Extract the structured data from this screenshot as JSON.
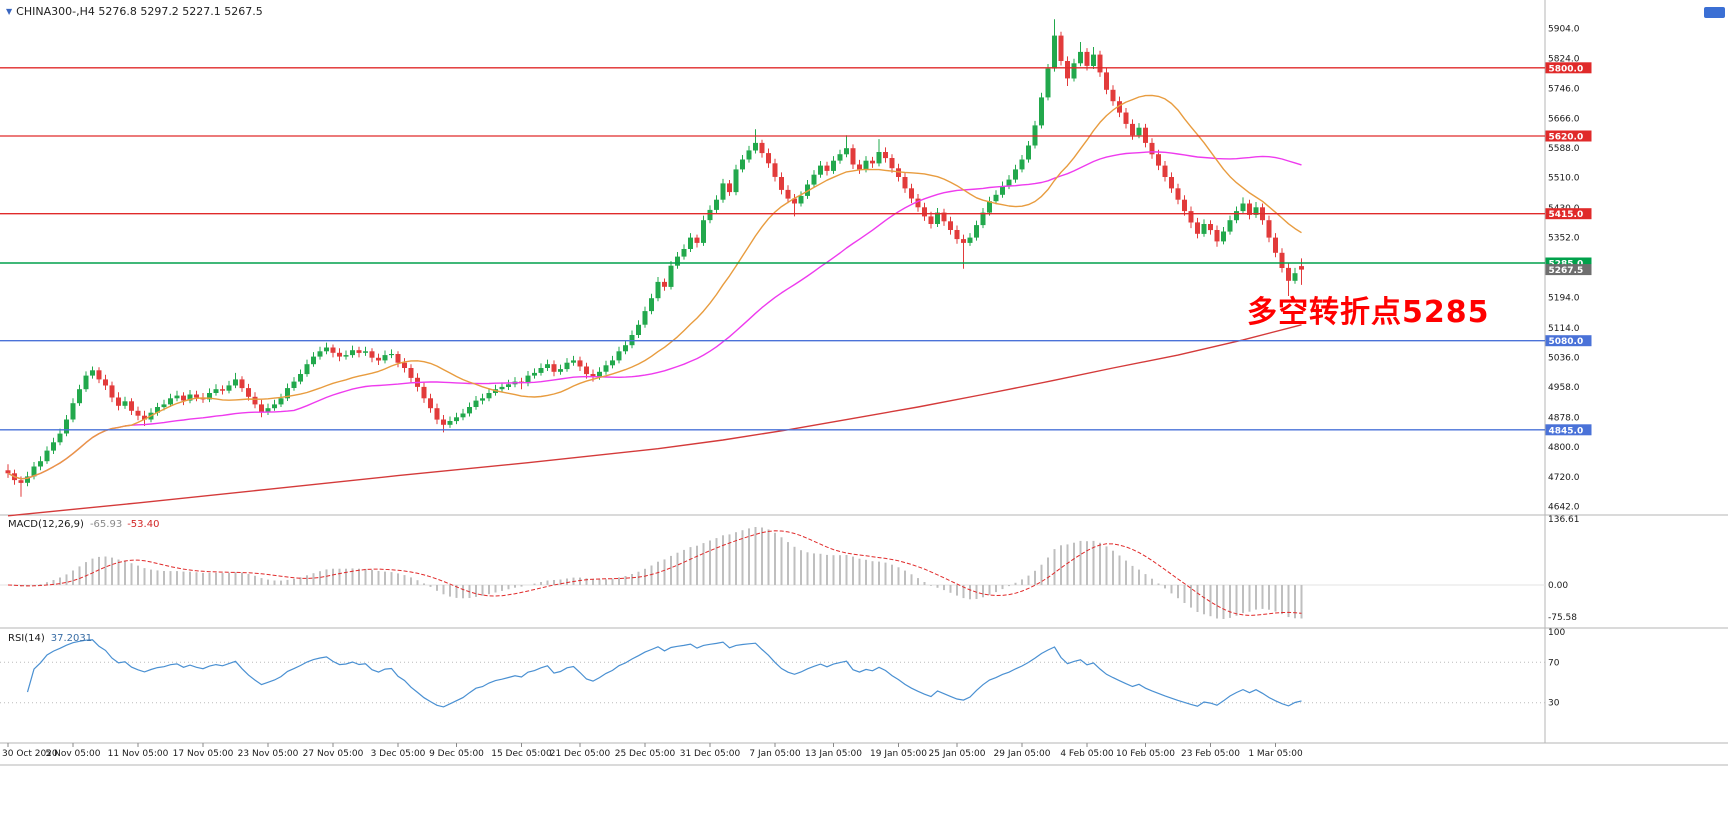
{
  "header": {
    "title": "CHINA300-,H4 5276.8 5297.2 5227.1 5267.5",
    "symbol": "CHINA300-",
    "timeframe": "H4",
    "open": "5276.8",
    "high": "5297.2",
    "low": "5227.1",
    "close": "5267.5"
  },
  "colors": {
    "up": "#22a84c",
    "down": "#e23b3b",
    "red_line": "#e02a2a",
    "green_line": "#00a14b",
    "blue_line": "#4a72d8",
    "current_tag": "#6e6e6e",
    "ma_fast": "#e89c3f",
    "ma_mid": "#ee3bee",
    "ma_slow": "#d43a3a",
    "macd_hist": "#bfbfbf",
    "macd_signal": "#e02a2a",
    "rsi": "#4a90d2",
    "annotation": "#ff0000"
  },
  "chart_data": {
    "type": "candlestick",
    "title": "CHINA300- H4",
    "price_axis": {
      "ticks": [
        5904,
        5824,
        5746,
        5666,
        5588,
        5510,
        5430,
        5352,
        5272,
        5194,
        5114,
        5036,
        4958,
        4878,
        4800,
        4720,
        4642
      ],
      "decimals": 1
    },
    "time_axis": [
      {
        "label": "30 Oct 2020",
        "i": 0
      },
      {
        "label": "5 Nov 05:00",
        "i": 10
      },
      {
        "label": "11 Nov 05:00",
        "i": 20
      },
      {
        "label": "17 Nov 05:00",
        "i": 30
      },
      {
        "label": "23 Nov 05:00",
        "i": 40
      },
      {
        "label": "27 Nov 05:00",
        "i": 50
      },
      {
        "label": "3 Dec 05:00",
        "i": 60
      },
      {
        "label": "9 Dec 05:00",
        "i": 69
      },
      {
        "label": "15 Dec 05:00",
        "i": 79
      },
      {
        "label": "21 Dec 05:00",
        "i": 88
      },
      {
        "label": "25 Dec 05:00",
        "i": 98
      },
      {
        "label": "31 Dec 05:00",
        "i": 108
      },
      {
        "label": "7 Jan 05:00",
        "i": 118
      },
      {
        "label": "13 Jan 05:00",
        "i": 127
      },
      {
        "label": "19 Jan 05:00",
        "i": 137
      },
      {
        "label": "25 Jan 05:00",
        "i": 146
      },
      {
        "label": "29 Jan 05:00",
        "i": 156
      },
      {
        "label": "4 Feb 05:00",
        "i": 166
      },
      {
        "label": "10 Feb 05:00",
        "i": 175
      },
      {
        "label": "23 Feb 05:00",
        "i": 185
      },
      {
        "label": "1 Mar 05:00",
        "i": 195
      }
    ],
    "ohlc": [
      [
        4738,
        4754,
        4718,
        4730
      ],
      [
        4730,
        4740,
        4700,
        4712
      ],
      [
        4712,
        4722,
        4668,
        4705
      ],
      [
        4705,
        4734,
        4696,
        4722
      ],
      [
        4722,
        4760,
        4714,
        4748
      ],
      [
        4748,
        4775,
        4738,
        4762
      ],
      [
        4762,
        4801,
        4755,
        4790
      ],
      [
        4790,
        4824,
        4781,
        4812
      ],
      [
        4812,
        4848,
        4804,
        4835
      ],
      [
        4835,
        4884,
        4828,
        4872
      ],
      [
        4872,
        4928,
        4865,
        4915
      ],
      [
        4915,
        4964,
        4908,
        4952
      ],
      [
        4952,
        4999,
        4945,
        4988
      ],
      [
        4988,
        5012,
        4980,
        5002
      ],
      [
        5002,
        5010,
        4968,
        4978
      ],
      [
        4978,
        4990,
        4950,
        4962
      ],
      [
        4962,
        4972,
        4918,
        4930
      ],
      [
        4930,
        4944,
        4896,
        4908
      ],
      [
        4908,
        4932,
        4900,
        4920
      ],
      [
        4920,
        4928,
        4884,
        4895
      ],
      [
        4895,
        4906,
        4870,
        4882
      ],
      [
        4882,
        4895,
        4855,
        4872
      ],
      [
        4872,
        4902,
        4865,
        4890
      ],
      [
        4890,
        4916,
        4882,
        4905
      ],
      [
        4905,
        4924,
        4896,
        4912
      ],
      [
        4912,
        4940,
        4905,
        4928
      ],
      [
        4928,
        4948,
        4920,
        4935
      ],
      [
        4935,
        4944,
        4910,
        4922
      ],
      [
        4922,
        4950,
        4915,
        4938
      ],
      [
        4938,
        4948,
        4920,
        4930
      ],
      [
        4930,
        4942,
        4916,
        4925
      ],
      [
        4925,
        4954,
        4918,
        4942
      ],
      [
        4942,
        4965,
        4935,
        4952
      ],
      [
        4952,
        4962,
        4938,
        4948
      ],
      [
        4948,
        4974,
        4941,
        4962
      ],
      [
        4962,
        4995,
        4955,
        4978
      ],
      [
        4978,
        4986,
        4945,
        4955
      ],
      [
        4955,
        4966,
        4922,
        4932
      ],
      [
        4932,
        4944,
        4902,
        4912
      ],
      [
        4912,
        4924,
        4878,
        4892
      ],
      [
        4892,
        4914,
        4884,
        4902
      ],
      [
        4902,
        4924,
        4895,
        4912
      ],
      [
        4912,
        4940,
        4905,
        4928
      ],
      [
        4928,
        4967,
        4921,
        4955
      ],
      [
        4955,
        4984,
        4948,
        4972
      ],
      [
        4972,
        5004,
        4965,
        4992
      ],
      [
        4992,
        5030,
        4985,
        5018
      ],
      [
        5018,
        5050,
        5011,
        5038
      ],
      [
        5038,
        5064,
        5030,
        5052
      ],
      [
        5052,
        5075,
        5044,
        5062
      ],
      [
        5062,
        5070,
        5036,
        5048
      ],
      [
        5048,
        5060,
        5026,
        5038
      ],
      [
        5038,
        5054,
        5030,
        5042
      ],
      [
        5042,
        5067,
        5035,
        5055
      ],
      [
        5055,
        5064,
        5036,
        5048
      ],
      [
        5048,
        5064,
        5040,
        5052
      ],
      [
        5052,
        5060,
        5023,
        5035
      ],
      [
        5035,
        5046,
        5016,
        5028
      ],
      [
        5028,
        5054,
        5020,
        5042
      ],
      [
        5042,
        5057,
        5034,
        5045
      ],
      [
        5045,
        5052,
        5010,
        5022
      ],
      [
        5022,
        5034,
        4996,
        5008
      ],
      [
        5008,
        5018,
        4970,
        4982
      ],
      [
        4982,
        4994,
        4946,
        4958
      ],
      [
        4958,
        4970,
        4916,
        4928
      ],
      [
        4928,
        4940,
        4890,
        4902
      ],
      [
        4902,
        4914,
        4860,
        4872
      ],
      [
        4872,
        4884,
        4838,
        4858
      ],
      [
        4858,
        4880,
        4850,
        4868
      ],
      [
        4868,
        4890,
        4860,
        4878
      ],
      [
        4878,
        4900,
        4870,
        4888
      ],
      [
        4888,
        4917,
        4880,
        4905
      ],
      [
        4905,
        4934,
        4898,
        4922
      ],
      [
        4922,
        4940,
        4912,
        4928
      ],
      [
        4928,
        4954,
        4920,
        4942
      ],
      [
        4942,
        4964,
        4935,
        4952
      ],
      [
        4952,
        4970,
        4944,
        4958
      ],
      [
        4958,
        4977,
        4950,
        4965
      ],
      [
        4965,
        4984,
        4957,
        4972
      ],
      [
        4972,
        4982,
        4952,
        4968
      ],
      [
        4968,
        5000,
        4960,
        4988
      ],
      [
        4988,
        5007,
        4980,
        4995
      ],
      [
        4995,
        5020,
        4988,
        5008
      ],
      [
        5008,
        5030,
        5000,
        5018
      ],
      [
        5018,
        5028,
        4986,
        4998
      ],
      [
        4998,
        5017,
        4990,
        5005
      ],
      [
        5005,
        5034,
        4998,
        5022
      ],
      [
        5022,
        5040,
        5014,
        5028
      ],
      [
        5028,
        5038,
        5000,
        5012
      ],
      [
        5012,
        5022,
        4980,
        4992
      ],
      [
        4992,
        5004,
        4972,
        4985
      ],
      [
        4985,
        5010,
        4977,
        4998
      ],
      [
        4998,
        5027,
        4990,
        5015
      ],
      [
        5015,
        5040,
        5007,
        5028
      ],
      [
        5028,
        5064,
        5020,
        5052
      ],
      [
        5052,
        5080,
        5044,
        5068
      ],
      [
        5068,
        5107,
        5060,
        5095
      ],
      [
        5095,
        5134,
        5087,
        5122
      ],
      [
        5122,
        5170,
        5114,
        5158
      ],
      [
        5158,
        5204,
        5150,
        5192
      ],
      [
        5192,
        5248,
        5184,
        5235
      ],
      [
        5235,
        5244,
        5212,
        5222
      ],
      [
        5222,
        5290,
        5215,
        5278
      ],
      [
        5278,
        5314,
        5270,
        5302
      ],
      [
        5302,
        5334,
        5294,
        5322
      ],
      [
        5322,
        5364,
        5314,
        5352
      ],
      [
        5352,
        5360,
        5326,
        5338
      ],
      [
        5338,
        5410,
        5330,
        5398
      ],
      [
        5398,
        5437,
        5390,
        5425
      ],
      [
        5425,
        5464,
        5417,
        5452
      ],
      [
        5452,
        5507,
        5444,
        5495
      ],
      [
        5495,
        5504,
        5462,
        5472
      ],
      [
        5472,
        5544,
        5464,
        5532
      ],
      [
        5532,
        5570,
        5524,
        5558
      ],
      [
        5558,
        5594,
        5550,
        5582
      ],
      [
        5582,
        5638,
        5574,
        5602
      ],
      [
        5602,
        5610,
        5563,
        5575
      ],
      [
        5575,
        5587,
        5536,
        5548
      ],
      [
        5548,
        5560,
        5500,
        5512
      ],
      [
        5512,
        5524,
        5466,
        5478
      ],
      [
        5478,
        5490,
        5443,
        5455
      ],
      [
        5455,
        5467,
        5408,
        5442
      ],
      [
        5442,
        5474,
        5434,
        5462
      ],
      [
        5462,
        5504,
        5454,
        5492
      ],
      [
        5492,
        5530,
        5484,
        5518
      ],
      [
        5518,
        5554,
        5510,
        5542
      ],
      [
        5542,
        5552,
        5516,
        5528
      ],
      [
        5528,
        5567,
        5520,
        5555
      ],
      [
        5555,
        5584,
        5547,
        5572
      ],
      [
        5572,
        5622,
        5564,
        5588
      ],
      [
        5588,
        5598,
        5533,
        5545
      ],
      [
        5545,
        5557,
        5520,
        5532
      ],
      [
        5532,
        5567,
        5524,
        5555
      ],
      [
        5555,
        5565,
        5536,
        5548
      ],
      [
        5548,
        5612,
        5540,
        5578
      ],
      [
        5578,
        5590,
        5550,
        5562
      ],
      [
        5562,
        5572,
        5523,
        5535
      ],
      [
        5535,
        5547,
        5500,
        5512
      ],
      [
        5512,
        5524,
        5470,
        5482
      ],
      [
        5482,
        5494,
        5443,
        5455
      ],
      [
        5455,
        5467,
        5420,
        5432
      ],
      [
        5432,
        5444,
        5396,
        5408
      ],
      [
        5408,
        5420,
        5376,
        5388
      ],
      [
        5388,
        5430,
        5380,
        5418
      ],
      [
        5418,
        5428,
        5383,
        5395
      ],
      [
        5395,
        5407,
        5360,
        5372
      ],
      [
        5372,
        5384,
        5336,
        5348
      ],
      [
        5348,
        5360,
        5270,
        5338
      ],
      [
        5338,
        5364,
        5330,
        5352
      ],
      [
        5352,
        5397,
        5344,
        5385
      ],
      [
        5385,
        5430,
        5377,
        5418
      ],
      [
        5418,
        5460,
        5410,
        5448
      ],
      [
        5448,
        5477,
        5440,
        5465
      ],
      [
        5465,
        5500,
        5457,
        5488
      ],
      [
        5488,
        5517,
        5480,
        5505
      ],
      [
        5505,
        5544,
        5497,
        5532
      ],
      [
        5532,
        5570,
        5524,
        5558
      ],
      [
        5558,
        5607,
        5550,
        5595
      ],
      [
        5595,
        5660,
        5587,
        5648
      ],
      [
        5648,
        5734,
        5640,
        5722
      ],
      [
        5722,
        5810,
        5714,
        5798
      ],
      [
        5798,
        5928,
        5790,
        5885
      ],
      [
        5885,
        5895,
        5806,
        5818
      ],
      [
        5818,
        5830,
        5752,
        5772
      ],
      [
        5772,
        5824,
        5764,
        5812
      ],
      [
        5812,
        5868,
        5804,
        5842
      ],
      [
        5842,
        5852,
        5793,
        5805
      ],
      [
        5805,
        5855,
        5797,
        5835
      ],
      [
        5835,
        5845,
        5776,
        5788
      ],
      [
        5788,
        5800,
        5730,
        5742
      ],
      [
        5742,
        5754,
        5700,
        5712
      ],
      [
        5712,
        5724,
        5670,
        5682
      ],
      [
        5682,
        5694,
        5640,
        5652
      ],
      [
        5652,
        5664,
        5610,
        5622
      ],
      [
        5622,
        5654,
        5614,
        5642
      ],
      [
        5642,
        5652,
        5590,
        5602
      ],
      [
        5602,
        5614,
        5560,
        5572
      ],
      [
        5572,
        5584,
        5530,
        5542
      ],
      [
        5542,
        5554,
        5500,
        5512
      ],
      [
        5512,
        5524,
        5470,
        5482
      ],
      [
        5482,
        5494,
        5440,
        5452
      ],
      [
        5452,
        5464,
        5410,
        5422
      ],
      [
        5422,
        5434,
        5377,
        5392
      ],
      [
        5392,
        5404,
        5350,
        5362
      ],
      [
        5362,
        5400,
        5354,
        5388
      ],
      [
        5388,
        5398,
        5360,
        5372
      ],
      [
        5372,
        5384,
        5328,
        5342
      ],
      [
        5342,
        5380,
        5334,
        5368
      ],
      [
        5368,
        5410,
        5360,
        5398
      ],
      [
        5398,
        5434,
        5390,
        5422
      ],
      [
        5422,
        5458,
        5414,
        5442
      ],
      [
        5442,
        5452,
        5400,
        5412
      ],
      [
        5412,
        5446,
        5404,
        5432
      ],
      [
        5432,
        5442,
        5386,
        5398
      ],
      [
        5398,
        5410,
        5340,
        5352
      ],
      [
        5352,
        5364,
        5300,
        5312
      ],
      [
        5312,
        5324,
        5260,
        5272
      ],
      [
        5272,
        5284,
        5198,
        5238
      ],
      [
        5238,
        5272,
        5230,
        5258
      ],
      [
        5276.8,
        5297.2,
        5227.1,
        5267.5
      ]
    ],
    "last_candle": {
      "open": 5276.8,
      "high": 5297.2,
      "low": 5227.1,
      "close": 5267.5
    },
    "hlines": [
      {
        "price": 5800,
        "label": "5800.0",
        "color": "red_line"
      },
      {
        "price": 5620,
        "label": "5620.0",
        "color": "red_line"
      },
      {
        "price": 5415,
        "label": "5415.0",
        "color": "red_line"
      },
      {
        "price": 5285,
        "label": "5285.0",
        "color": "green_line"
      },
      {
        "price": 5080,
        "label": "5080.0",
        "color": "blue_line"
      },
      {
        "price": 4845,
        "label": "4845.0",
        "color": "blue_line"
      }
    ],
    "current_price": {
      "value": 5267.5,
      "label": "5267.5"
    },
    "ma_lines": [
      {
        "name": "ma-fast-orange",
        "period": 20,
        "color_key": "ma_fast"
      },
      {
        "name": "ma-mid-magenta",
        "period": 45,
        "color_key": "ma_mid"
      },
      {
        "name": "ma-slow-red",
        "color_key": "ma_slow",
        "points": [
          [
            0,
            4618
          ],
          [
            20,
            4652
          ],
          [
            40,
            4688
          ],
          [
            60,
            4724
          ],
          [
            80,
            4758
          ],
          [
            100,
            4795
          ],
          [
            110,
            4818
          ],
          [
            120,
            4845
          ],
          [
            130,
            4875
          ],
          [
            140,
            4905
          ],
          [
            150,
            4938
          ],
          [
            160,
            4972
          ],
          [
            170,
            5008
          ],
          [
            180,
            5042
          ],
          [
            190,
            5082
          ],
          [
            199,
            5122
          ]
        ]
      }
    ],
    "indicators": {
      "macd": {
        "label": "MACD(12,26,9)",
        "value": "-65.93",
        "signal": "-53.40",
        "fast": 12,
        "slow": 26,
        "smoothing": 9,
        "axis_labels": [
          "136.61",
          "0.00",
          "-75.58"
        ]
      },
      "rsi": {
        "label": "RSI(14)",
        "value": "37.2031",
        "period": 14,
        "levels": [
          70,
          30
        ],
        "axis_labels": [
          "100",
          "70",
          "30"
        ]
      }
    },
    "annotation": {
      "text": "多空转折点5285"
    }
  }
}
